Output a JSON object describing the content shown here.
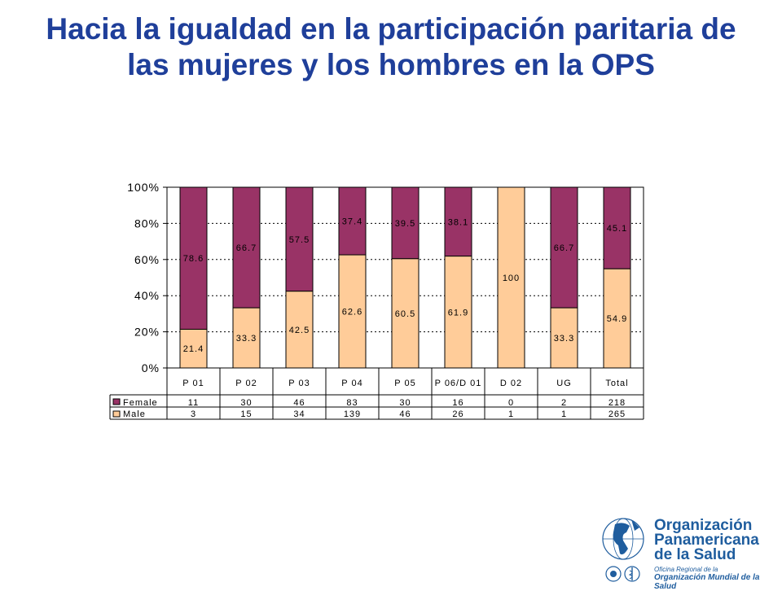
{
  "slide": {
    "title": "Hacia la igualdad en la participación paritaria de las mujeres y los hombres en la OPS"
  },
  "colors": {
    "title": "#1f3f9a",
    "female": "#993366",
    "male": "#ffcc99"
  },
  "chart_data": {
    "type": "bar",
    "stacked": "percent",
    "categories": [
      "P 01",
      "P 02",
      "P 03",
      "P 04",
      "P 05",
      "P 06/D 01",
      "D 02",
      "UG",
      "Total"
    ],
    "y_ticks": [
      "0%",
      "20%",
      "40%",
      "60%",
      "80%",
      "100%"
    ],
    "ylim": [
      0,
      100
    ],
    "grid": "dotted horizontal",
    "legend": "left of data table",
    "series": [
      {
        "name": "Male",
        "color": "#ffcc99",
        "percent": [
          21.4,
          33.3,
          42.5,
          62.6,
          60.5,
          61.9,
          100,
          33.3,
          54.9
        ],
        "labels": [
          "21.4",
          "33.3",
          "42.5",
          "62.6",
          "60.5",
          "61.9",
          "100",
          "33.3",
          "54.9"
        ],
        "counts": [
          "3",
          "15",
          "34",
          "139",
          "46",
          "26",
          "1",
          "1",
          "265"
        ]
      },
      {
        "name": "Female",
        "color": "#993366",
        "percent": [
          78.6,
          66.7,
          57.5,
          37.4,
          39.5,
          38.1,
          0,
          66.7,
          45.1
        ],
        "labels": [
          "78.6",
          "66.7",
          "57.5",
          "37.4",
          "39.5",
          "38.1",
          "",
          "66.7",
          "45.1"
        ],
        "counts": [
          "11",
          "30",
          "46",
          "83",
          "30",
          "16",
          "0",
          "2",
          "218"
        ]
      }
    ],
    "table_rows": [
      "Female",
      "Male"
    ]
  },
  "logo": {
    "line1": "Organización",
    "line2": "Panamericana",
    "line3": "de la Salud",
    "sub1": "Oficina Regional de la",
    "sub2": "Organización Mundial de la Salud"
  }
}
